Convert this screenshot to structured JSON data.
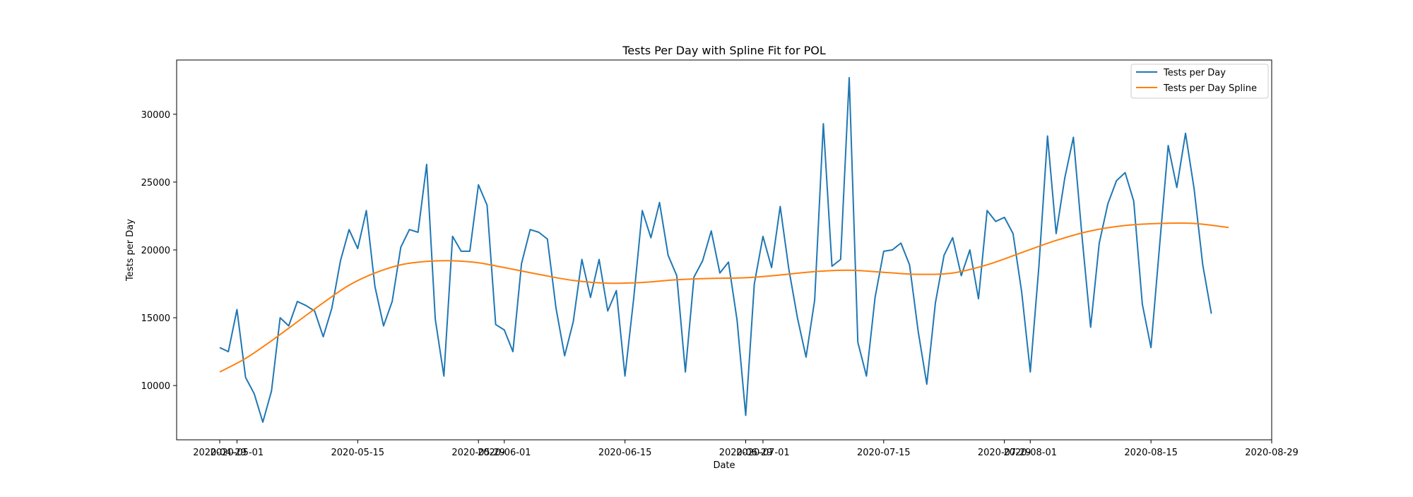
{
  "chart_data": {
    "type": "line",
    "title": "Tests Per Day with Spline Fit for POL",
    "xlabel": "Date",
    "ylabel": "Tests per Day",
    "x_start": "2020-04-29",
    "x_end": "2020-08-24",
    "xlim": [
      "2020-04-24",
      "2020-08-29"
    ],
    "ylim": [
      6000,
      34000
    ],
    "y_ticks": [
      10000,
      15000,
      20000,
      25000,
      30000
    ],
    "x_ticks": [
      {
        "date": "2020-04-29",
        "label": "2020-04-29"
      },
      {
        "date": "2020-05-01",
        "label": "2020-05-01"
      },
      {
        "date": "2020-05-15",
        "label": "2020-05-15"
      },
      {
        "date": "2020-05-29",
        "label": "2020-05-29"
      },
      {
        "date": "2020-06-01",
        "label": "2020-06-01"
      },
      {
        "date": "2020-06-15",
        "label": "2020-06-15"
      },
      {
        "date": "2020-06-29",
        "label": "2020-06-29"
      },
      {
        "date": "2020-07-01",
        "label": "2020-07-01"
      },
      {
        "date": "2020-07-15",
        "label": "2020-07-15"
      },
      {
        "date": "2020-07-29",
        "label": "2020-07-29"
      },
      {
        "date": "2020-08-01",
        "label": "2020-08-01"
      },
      {
        "date": "2020-08-15",
        "label": "2020-08-15"
      },
      {
        "date": "2020-08-29",
        "label": "2020-08-29"
      }
    ],
    "legend_position": "top-right",
    "grid": false,
    "series": [
      {
        "name": "Tests per Day",
        "color": "#1f77b4",
        "values": [
          12800,
          12500,
          15600,
          10600,
          9400,
          7300,
          9600,
          15000,
          14400,
          16200,
          15900,
          15500,
          13600,
          15700,
          19200,
          21500,
          20100,
          22900,
          17300,
          14400,
          16200,
          20200,
          21500,
          21300,
          26300,
          14900,
          10700,
          21000,
          19900,
          19900,
          24800,
          23300,
          14500,
          14100,
          12500,
          19000,
          21500,
          21300,
          20800,
          15700,
          12200,
          14700,
          19300,
          16500,
          19300,
          15500,
          17000,
          10700,
          16400,
          22900,
          20900,
          23500,
          19600,
          18100,
          11000,
          18000,
          19200,
          21400,
          18300,
          19100,
          14800,
          7800,
          17500,
          21000,
          18700,
          23200,
          18600,
          15000,
          12100,
          16300,
          29300,
          18800,
          19300,
          32700,
          13200,
          10700,
          16500,
          19900,
          20000,
          20500,
          18900,
          14000,
          10100,
          16100,
          19600,
          20900,
          18100,
          20000,
          16400,
          22900,
          22100,
          22400,
          21200,
          16900,
          11000,
          18800,
          28400,
          21200,
          25300,
          28300,
          21000,
          14300,
          20500,
          23400,
          25100,
          25700,
          23600,
          16000,
          12800,
          20300,
          27700,
          24600,
          28600,
          24500,
          18900,
          15300
        ]
      },
      {
        "name": "Tests per Day Spline",
        "color": "#ff7f0e",
        "knots": [
          {
            "date": "2020-04-29",
            "y": 11000
          },
          {
            "date": "2020-05-02",
            "y": 12000
          },
          {
            "date": "2020-05-05",
            "y": 13300
          },
          {
            "date": "2020-05-08",
            "y": 14700
          },
          {
            "date": "2020-05-11",
            "y": 16100
          },
          {
            "date": "2020-05-14",
            "y": 17400
          },
          {
            "date": "2020-05-17",
            "y": 18300
          },
          {
            "date": "2020-05-20",
            "y": 18900
          },
          {
            "date": "2020-05-23",
            "y": 19150
          },
          {
            "date": "2020-05-26",
            "y": 19200
          },
          {
            "date": "2020-05-29",
            "y": 19050
          },
          {
            "date": "2020-06-01",
            "y": 18700
          },
          {
            "date": "2020-06-05",
            "y": 18200
          },
          {
            "date": "2020-06-09",
            "y": 17750
          },
          {
            "date": "2020-06-13",
            "y": 17550
          },
          {
            "date": "2020-06-17",
            "y": 17600
          },
          {
            "date": "2020-06-21",
            "y": 17800
          },
          {
            "date": "2020-06-25",
            "y": 17900
          },
          {
            "date": "2020-06-29",
            "y": 17950
          },
          {
            "date": "2020-07-03",
            "y": 18150
          },
          {
            "date": "2020-07-07",
            "y": 18400
          },
          {
            "date": "2020-07-11",
            "y": 18500
          },
          {
            "date": "2020-07-15",
            "y": 18350
          },
          {
            "date": "2020-07-19",
            "y": 18200
          },
          {
            "date": "2020-07-23",
            "y": 18300
          },
          {
            "date": "2020-07-27",
            "y": 18900
          },
          {
            "date": "2020-07-31",
            "y": 19800
          },
          {
            "date": "2020-08-04",
            "y": 20700
          },
          {
            "date": "2020-08-08",
            "y": 21400
          },
          {
            "date": "2020-08-12",
            "y": 21800
          },
          {
            "date": "2020-08-16",
            "y": 21950
          },
          {
            "date": "2020-08-20",
            "y": 21950
          },
          {
            "date": "2020-08-24",
            "y": 21650
          }
        ]
      }
    ]
  }
}
